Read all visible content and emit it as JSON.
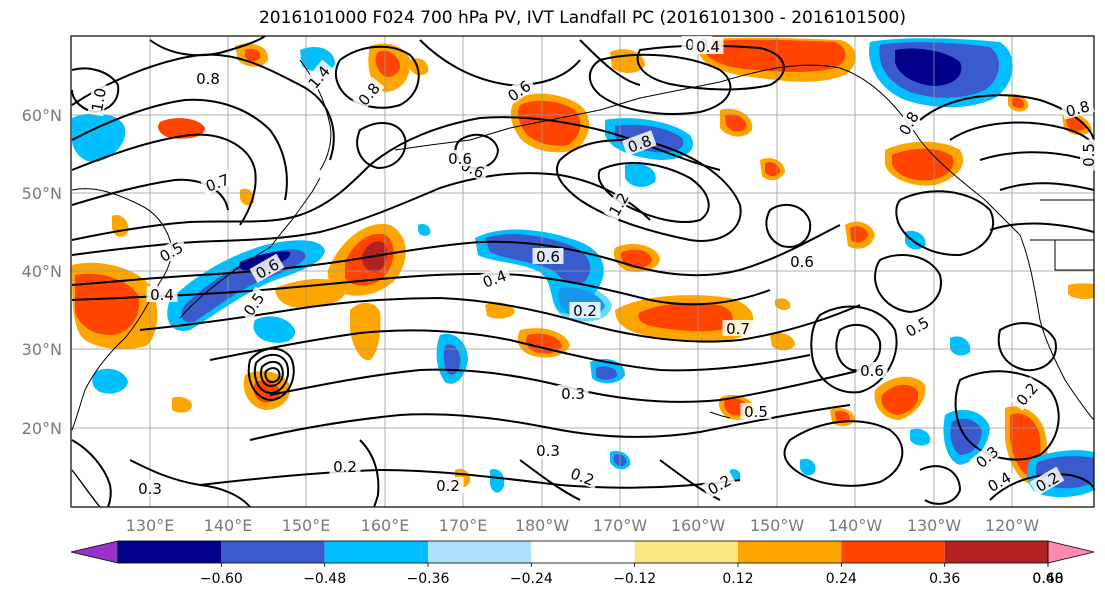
{
  "title": "2016101000 F024 700 hPa PV, IVT Landfall PC (2016101300 - 2016101500)",
  "lat_labels": [
    "60°N",
    "50°N",
    "40°N",
    "30°N",
    "20°N"
  ],
  "lon_labels": [
    "130°E",
    "140°E",
    "150°E",
    "160°E",
    "170°E",
    "180°W",
    "170°W",
    "160°W",
    "150°W",
    "140°W",
    "130°W",
    "120°W"
  ],
  "colorbar": {
    "ticks": [
      "−0.60",
      "−0.48",
      "−0.36",
      "−0.24",
      "−0.12",
      "0.12",
      "0.24",
      "0.36",
      "0.48",
      "0.60"
    ],
    "colors": [
      "#9932cc",
      "#00008b",
      "#3a5bcd",
      "#00bfff",
      "#b0e0ff",
      "#ffffff",
      "#ffe680",
      "#ffa500",
      "#ff4500",
      "#b22222",
      "#ff88b0"
    ]
  },
  "contour_labels": [
    "0.8",
    "1.0",
    "1.4",
    "0.8",
    "0.3",
    "0.4",
    "0.6",
    "0.6",
    "0.8",
    "1.2",
    "0.7",
    "0.6",
    "0.5",
    "0.6",
    "0.4",
    "0.5",
    "0.6",
    "0.4",
    "0.2",
    "0.7",
    "0.5",
    "0.6",
    "0.3",
    "0.5",
    "0.3",
    "0.2",
    "0.2",
    "0.3",
    "0.2",
    "0.2",
    "0.3",
    "0.4",
    "0.2",
    "0.8",
    "0.5",
    "0.6",
    "0.2",
    "0.8"
  ],
  "colors": {
    "contour": "#000000",
    "axis_label": "#7a7a7a",
    "gridline": "#999999"
  }
}
